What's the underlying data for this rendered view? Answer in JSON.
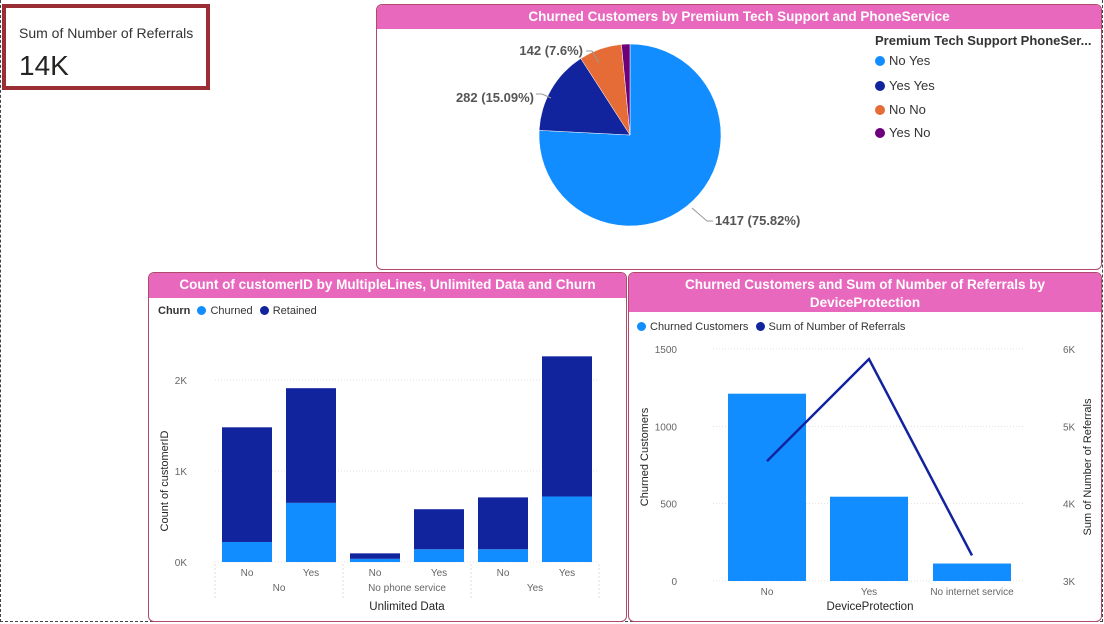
{
  "card": {
    "label": "Sum of Number of Referrals",
    "value": "14K"
  },
  "pie": {
    "title": "Churned Customers by Premium Tech Support and PhoneService",
    "legend_title": "Premium Tech Support PhoneSer...",
    "labels": {
      "no_yes": "1417 (75.82%)",
      "yes_yes": "282 (15.09%)",
      "no_no": "142 (7.6%)"
    },
    "chart_data": {
      "type": "pie",
      "categories": [
        "No Yes",
        "Yes Yes",
        "No No",
        "Yes No"
      ],
      "values": [
        1417,
        282,
        142,
        28
      ],
      "colors": [
        "#118dff",
        "#12239e",
        "#e66c37",
        "#6b007b"
      ]
    }
  },
  "bar": {
    "title": "Count of customerID by MultipleLines, Unlimited Data and Churn",
    "legend_title": "Churn",
    "legend": [
      "Churned",
      "Retained"
    ],
    "ylabel": "Count of customerID",
    "xlabel": "Unlimited Data",
    "yticks": [
      "0K",
      "1K",
      "2K"
    ],
    "inner_labels": [
      "No",
      "Yes",
      "No",
      "Yes",
      "No",
      "Yes"
    ],
    "outer_labels": [
      "No",
      "No phone service",
      "Yes"
    ],
    "chart_data": {
      "type": "bar",
      "stacked": true,
      "categories": [
        "No|No",
        "No|Yes",
        "No phone service|No",
        "No phone service|Yes",
        "Yes|No",
        "Yes|Yes"
      ],
      "series": [
        {
          "name": "Churned",
          "values": [
            220,
            650,
            35,
            140,
            140,
            720
          ],
          "color": "#118dff"
        },
        {
          "name": "Retained",
          "values": [
            1260,
            1260,
            60,
            440,
            570,
            1540
          ],
          "color": "#12239e"
        }
      ],
      "ylim": [
        0,
        2300
      ]
    }
  },
  "combo": {
    "title": "Churned Customers and Sum of Number of Referrals by DeviceProtection",
    "legend": [
      "Churned Customers",
      "Sum of Number of Referrals"
    ],
    "ylabel_left": "Churned Customers",
    "ylabel_right": "Sum of Number of Referrals",
    "xlabel": "DeviceProtection",
    "yticks_left": [
      "0",
      "500",
      "1000",
      "1500"
    ],
    "yticks_right": [
      "3K",
      "4K",
      "5K",
      "6K"
    ],
    "chart_data": {
      "type": "bar",
      "categories": [
        "No",
        "Yes",
        "No internet service"
      ],
      "series": [
        {
          "name": "Churned Customers",
          "type": "bar",
          "values": [
            1211,
            545,
            113
          ],
          "color": "#118dff",
          "ylim": [
            0,
            1500
          ]
        },
        {
          "name": "Sum of Number of Referrals",
          "type": "line",
          "values": [
            4550,
            5870,
            3330
          ],
          "color": "#12239e",
          "ylim": [
            3000,
            6000
          ]
        }
      ]
    }
  }
}
